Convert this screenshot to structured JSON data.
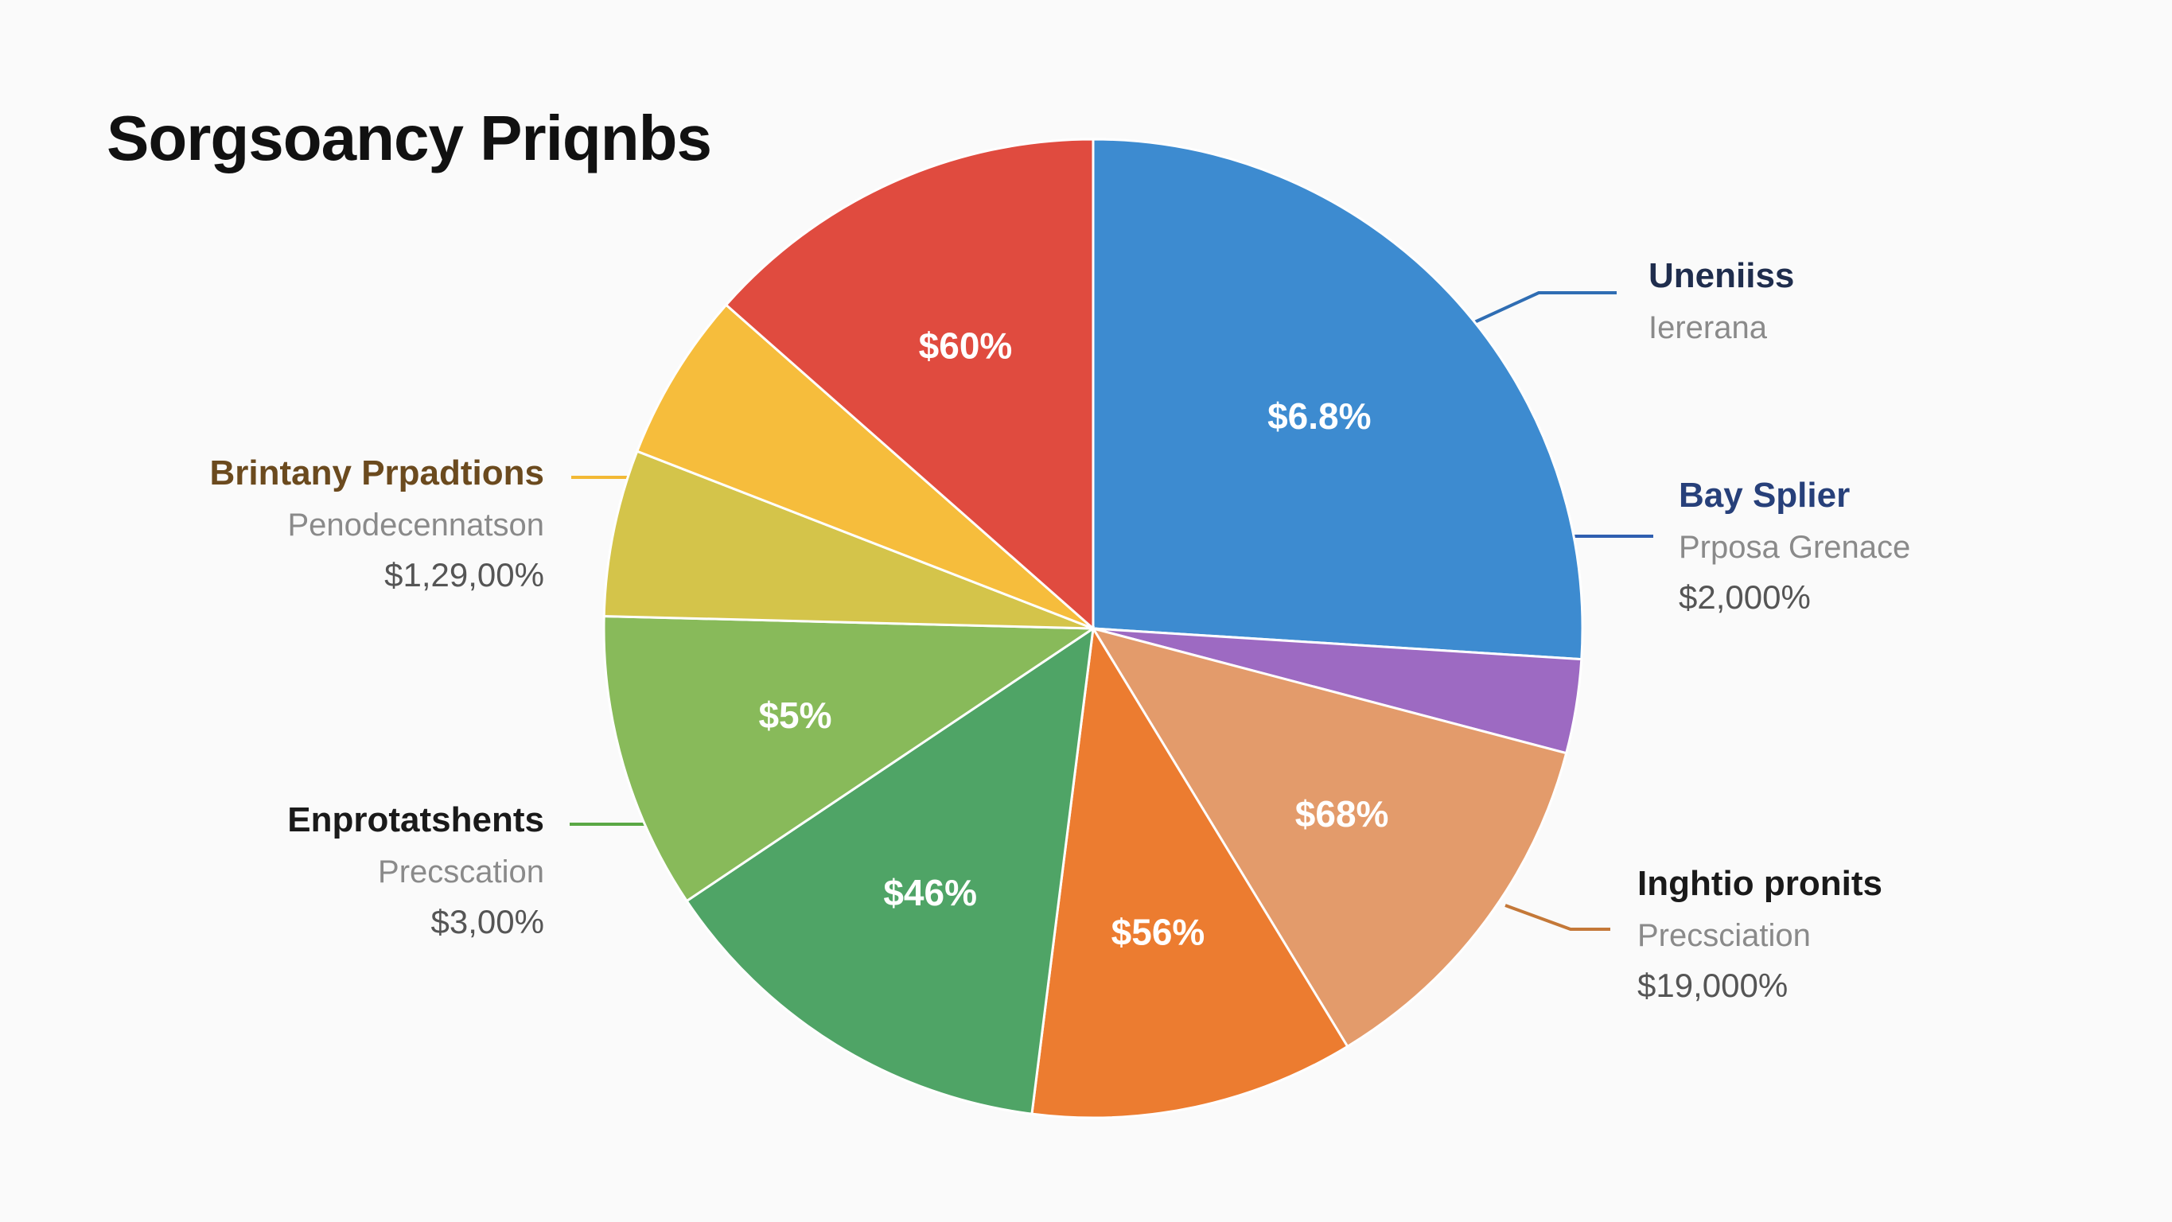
{
  "title": "Sorgsoancy Priqnbs",
  "chart_data": {
    "type": "pie",
    "title": "Sorgsoancy Priqnbs",
    "slices": [
      {
        "label": "$6.8%",
        "value": 26.0,
        "color": "#3d8bd0"
      },
      {
        "label": "",
        "value": 3.1,
        "color": "#9d6ac2"
      },
      {
        "label": "$68%",
        "value": 12.2,
        "color": "#e39b6b"
      },
      {
        "label": "$56%",
        "value": 10.7,
        "color": "#ec7c30"
      },
      {
        "label": "$46%",
        "value": 13.6,
        "color": "#4fa466"
      },
      {
        "label": "$5%",
        "value": 9.8,
        "color": "#88ba5a"
      },
      {
        "label": "",
        "value": 5.5,
        "color": "#d4c44a"
      },
      {
        "label": "",
        "value": 5.6,
        "color": "#f6bd3c"
      },
      {
        "label": "$60%",
        "value": 13.5,
        "color": "#e04b3f"
      }
    ]
  },
  "callouts": [
    {
      "name": "Uneniiss",
      "sub": "Iererana",
      "value": "",
      "name_color": "#1f2d4d",
      "line_color": "#2f6db3"
    },
    {
      "name": "Bay Splier",
      "sub": "Prposa Grenace",
      "value": "$2,000%",
      "name_color": "#27407a",
      "line_color": "#2f5fb0"
    },
    {
      "name": "Inghtio pronits",
      "sub": "Precsciation",
      "value": "$19,000%",
      "name_color": "#1a1a1a",
      "line_color": "#c47838"
    },
    {
      "name": "Brintany Prpadtions",
      "sub": "Penodecennatson",
      "value": "$1,29,00%",
      "name_color": "#6b4a1e",
      "line_color": "#f2b935"
    },
    {
      "name": "Enprotatshents",
      "sub": "Precscation",
      "value": "$3,00%",
      "name_color": "#1a1a1a",
      "line_color": "#5aa845"
    }
  ]
}
